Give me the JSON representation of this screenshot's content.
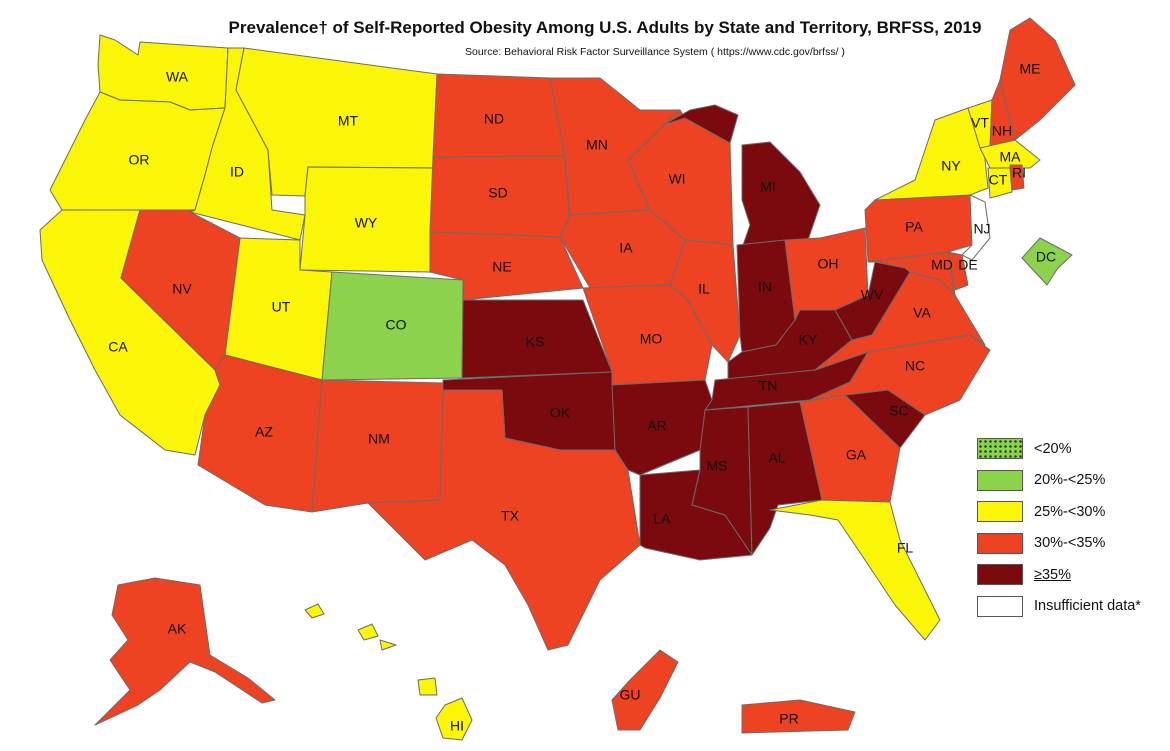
{
  "title": "Prevalence† of Self-Reported Obesity Among U.S. Adults by State and Territory, BRFSS, 2019",
  "source": "Source: Behavioral Risk Factor Surveillance System ( https://www.cdc.gov/brfss/ )",
  "colors": {
    "lt20": "#8cd24c",
    "c20_25": "#8cd24c",
    "c25_30": "#fbf507",
    "c30_35": "#ee4323",
    "ge35": "#7b0a0f",
    "insufficient": "#ffffff"
  },
  "legend": [
    {
      "key": "lt20",
      "label": "<20%",
      "pattern": "dots"
    },
    {
      "key": "c20_25",
      "label": "20%-<25%"
    },
    {
      "key": "c25_30",
      "label": "25%-<30%"
    },
    {
      "key": "c30_35",
      "label": "30%-<35%"
    },
    {
      "key": "ge35",
      "label": "≥35%"
    },
    {
      "key": "insufficient",
      "label": "Insufficient data*"
    }
  ],
  "states": [
    {
      "abbr": "WA",
      "category": "c25_30"
    },
    {
      "abbr": "OR",
      "category": "c25_30"
    },
    {
      "abbr": "CA",
      "category": "c25_30"
    },
    {
      "abbr": "ID",
      "category": "c25_30"
    },
    {
      "abbr": "MT",
      "category": "c25_30"
    },
    {
      "abbr": "WY",
      "category": "c25_30"
    },
    {
      "abbr": "UT",
      "category": "c25_30"
    },
    {
      "abbr": "NV",
      "category": "c30_35"
    },
    {
      "abbr": "AZ",
      "category": "c30_35"
    },
    {
      "abbr": "CO",
      "category": "c20_25"
    },
    {
      "abbr": "NM",
      "category": "c30_35"
    },
    {
      "abbr": "ND",
      "category": "c30_35"
    },
    {
      "abbr": "SD",
      "category": "c30_35"
    },
    {
      "abbr": "NE",
      "category": "c30_35"
    },
    {
      "abbr": "KS",
      "category": "ge35"
    },
    {
      "abbr": "OK",
      "category": "ge35"
    },
    {
      "abbr": "TX",
      "category": "c30_35"
    },
    {
      "abbr": "MN",
      "category": "c30_35"
    },
    {
      "abbr": "IA",
      "category": "c30_35"
    },
    {
      "abbr": "MO",
      "category": "c30_35"
    },
    {
      "abbr": "AR",
      "category": "ge35"
    },
    {
      "abbr": "LA",
      "category": "ge35"
    },
    {
      "abbr": "WI",
      "category": "c30_35"
    },
    {
      "abbr": "IL",
      "category": "c30_35"
    },
    {
      "abbr": "MI",
      "category": "ge35"
    },
    {
      "abbr": "IN",
      "category": "ge35"
    },
    {
      "abbr": "OH",
      "category": "c30_35"
    },
    {
      "abbr": "KY",
      "category": "ge35"
    },
    {
      "abbr": "TN",
      "category": "ge35"
    },
    {
      "abbr": "MS",
      "category": "ge35"
    },
    {
      "abbr": "AL",
      "category": "ge35"
    },
    {
      "abbr": "GA",
      "category": "c30_35"
    },
    {
      "abbr": "FL",
      "category": "c25_30"
    },
    {
      "abbr": "SC",
      "category": "ge35"
    },
    {
      "abbr": "NC",
      "category": "c30_35"
    },
    {
      "abbr": "VA",
      "category": "c30_35"
    },
    {
      "abbr": "WV",
      "category": "ge35"
    },
    {
      "abbr": "PA",
      "category": "c30_35"
    },
    {
      "abbr": "NY",
      "category": "c25_30"
    },
    {
      "abbr": "VT",
      "category": "c25_30"
    },
    {
      "abbr": "NH",
      "category": "c30_35"
    },
    {
      "abbr": "ME",
      "category": "c30_35"
    },
    {
      "abbr": "MA",
      "category": "c25_30"
    },
    {
      "abbr": "CT",
      "category": "c25_30"
    },
    {
      "abbr": "RI",
      "category": "c30_35"
    },
    {
      "abbr": "NJ",
      "category": "insufficient"
    },
    {
      "abbr": "DE",
      "category": "c30_35"
    },
    {
      "abbr": "MD",
      "category": "c30_35"
    },
    {
      "abbr": "DC",
      "category": "c20_25"
    },
    {
      "abbr": "AK",
      "category": "c30_35"
    },
    {
      "abbr": "HI",
      "category": "c25_30"
    },
    {
      "abbr": "GU",
      "category": "c30_35"
    },
    {
      "abbr": "PR",
      "category": "c30_35"
    }
  ]
}
